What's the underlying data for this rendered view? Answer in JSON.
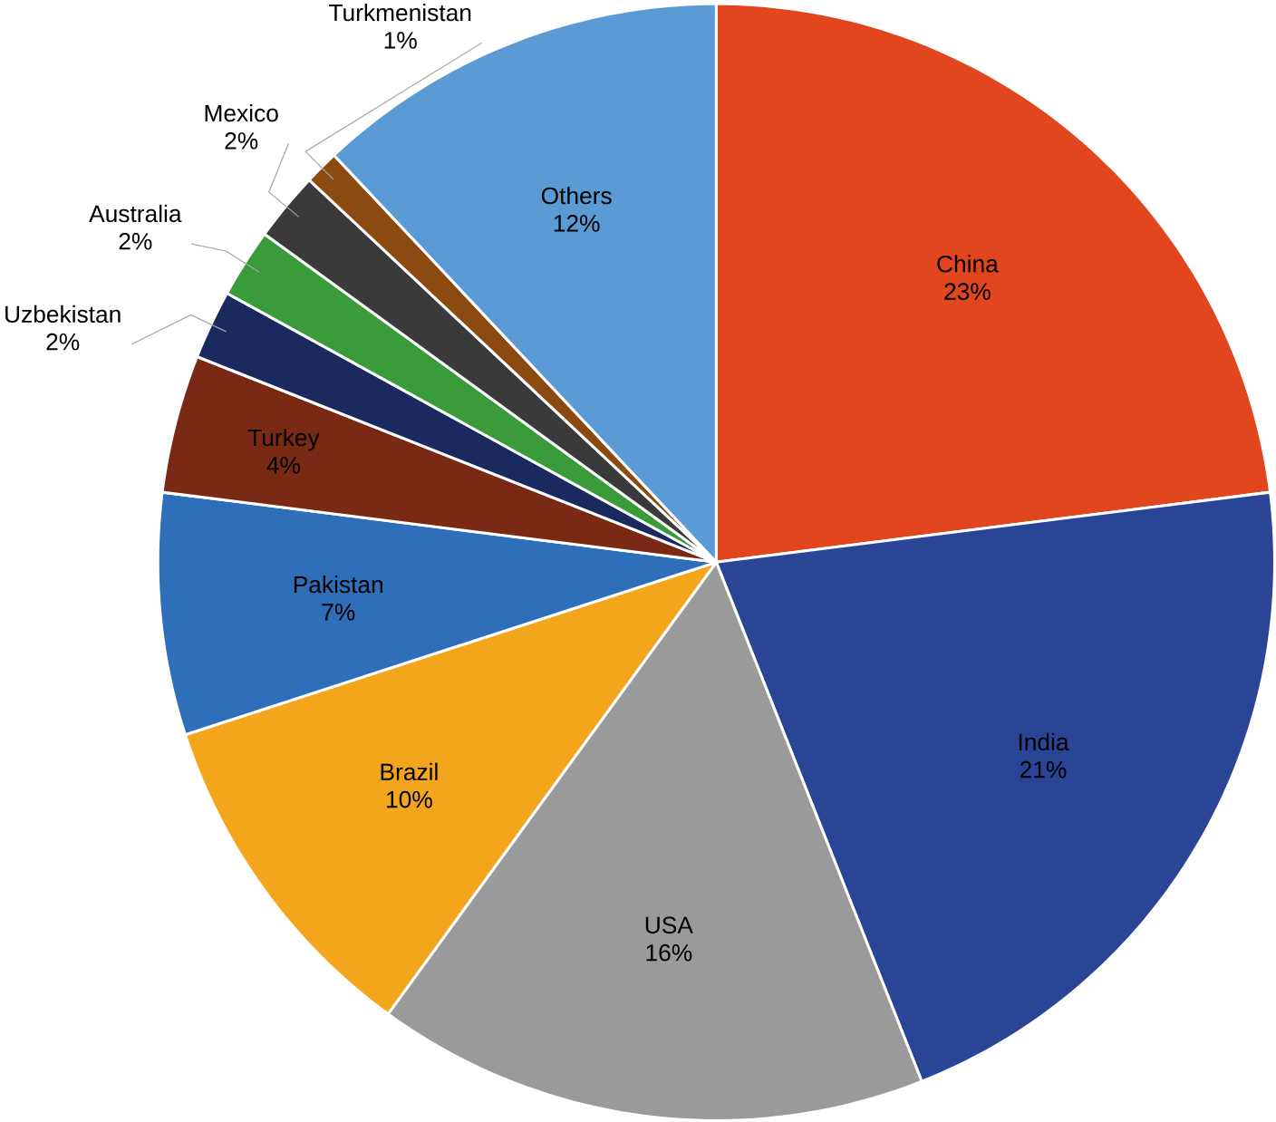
{
  "chart_data": {
    "type": "pie",
    "categories": [
      "China",
      "India",
      "USA",
      "Brazil",
      "Pakistan",
      "Turkey",
      "Uzbekistan",
      "Australia",
      "Mexico",
      "Turkmenistan",
      "Others"
    ],
    "values": [
      23,
      21,
      16,
      10,
      7,
      4,
      2,
      2,
      2,
      1,
      12
    ],
    "value_labels": [
      "23%",
      "21%",
      "16%",
      "10%",
      "7%",
      "4%",
      "2%",
      "2%",
      "2%",
      "1%",
      "12%"
    ],
    "colors": [
      "#e2461e",
      "#2a4596",
      "#9a9a9a",
      "#f3a51b",
      "#2f6fba",
      "#7a2a14",
      "#1b2a5e",
      "#3a9b3a",
      "#3a3a3a",
      "#8a4a10",
      "#5b9bd5"
    ]
  }
}
